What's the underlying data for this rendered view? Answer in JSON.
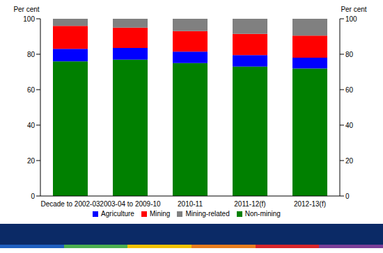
{
  "chart_data": {
    "type": "bar",
    "stacked": true,
    "grid": false,
    "legend": "bottom",
    "ylabel": "Per cent",
    "y2label": "Per cent",
    "categories": [
      "Decade to 2002-03",
      "2003-04 to 2009-10",
      "2010-11",
      "2011-12(f)",
      "2012-13(f)"
    ],
    "series": [
      {
        "name": "Non-mining",
        "color": "#008000",
        "values": [
          76,
          77,
          75,
          73,
          72
        ]
      },
      {
        "name": "Agriculture",
        "color": "#0000ff",
        "values": [
          7,
          6.5,
          6.5,
          6.5,
          6
        ]
      },
      {
        "name": "Mining",
        "color": "#ff0000",
        "values": [
          13,
          11.5,
          11.5,
          12,
          12.5
        ]
      },
      {
        "name": "Mining-related",
        "color": "#808080",
        "values": [
          4,
          5,
          7,
          8.5,
          9.5
        ]
      }
    ],
    "ylim": [
      0,
      100
    ],
    "yticks": [
      0,
      20,
      40,
      60,
      80,
      100
    ],
    "y2lim": [
      0,
      100
    ],
    "y2ticks": [
      0,
      20,
      40,
      60,
      80,
      100
    ]
  }
}
